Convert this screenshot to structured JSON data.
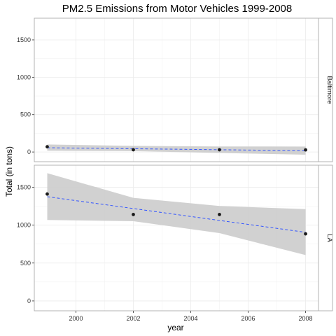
{
  "chart_data": {
    "type": "scatter",
    "title": "PM2.5 Emissions from Motor Vehicles 1999-2008",
    "xlabel": "year",
    "ylabel": "Total (in tons)",
    "x": [
      1999,
      2002,
      2005,
      2008
    ],
    "xlim": [
      1998.55,
      2008.45
    ],
    "x_ticks": [
      2000,
      2002,
      2004,
      2006,
      2008
    ],
    "y_ticks": [
      0,
      500,
      1000,
      1500
    ],
    "ylim": [
      -130,
      1790
    ],
    "grid": true,
    "facets": [
      "Baltimore",
      "LA"
    ],
    "series": [
      {
        "name": "Baltimore",
        "values": [
          70,
          30,
          30,
          28
        ],
        "trend": {
          "start": 57,
          "end": 17
        },
        "band": {
          "upper": [
            100,
            82,
            74,
            72
          ],
          "lower": [
            16,
            11,
            -13,
            -36
          ]
        }
      },
      {
        "name": "LA",
        "values": [
          1410,
          1140,
          1140,
          885
        ],
        "trend": {
          "start": 1375,
          "end": 905
        },
        "band": {
          "upper": [
            1685,
            1360,
            1252,
            1210
          ],
          "lower": [
            1068,
            1052,
            895,
            605
          ]
        }
      }
    ],
    "colors": {
      "points": "#1a1a1a",
      "trend": "#3355ff",
      "band": "#cccccc",
      "panel_border": "#b3b3b3",
      "grid": "#ebebeb",
      "strip": "#ffffff"
    }
  }
}
